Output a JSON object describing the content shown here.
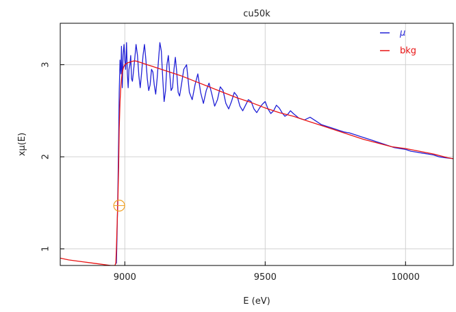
{
  "chart_data": {
    "type": "line",
    "title": "cu50k",
    "xlabel": "E (eV)",
    "ylabel": "xμ(E)",
    "xlim": [
      8770,
      10170
    ],
    "ylim": [
      0.82,
      3.45
    ],
    "xticks": [
      {
        "value": 9000,
        "label": "9000"
      },
      {
        "value": 9500,
        "label": "9500"
      },
      {
        "value": 10000,
        "label": "10000"
      }
    ],
    "yticks": [
      {
        "value": 1,
        "label": "1"
      },
      {
        "value": 2,
        "label": "2"
      },
      {
        "value": 3,
        "label": "3"
      }
    ],
    "grid": true,
    "legend_position": "top-right",
    "marker": {
      "x": 8980,
      "y": 1.47,
      "color": "#f0a020",
      "shape": "circle"
    },
    "series": [
      {
        "name": "μ",
        "color": "#1f1fd6",
        "x": [
          8970,
          8972,
          8975,
          8978,
          8980,
          8983,
          8986,
          8988,
          8991,
          8994,
          8997,
          9000,
          9003,
          9006,
          9009,
          9012,
          9015,
          9018,
          9021,
          9024,
          9027,
          9030,
          9035,
          9040,
          9045,
          9050,
          9055,
          9060,
          9065,
          9070,
          9075,
          9080,
          9085,
          9090,
          9095,
          9100,
          9105,
          9110,
          9115,
          9120,
          9125,
          9130,
          9135,
          9140,
          9145,
          9150,
          9155,
          9160,
          9165,
          9170,
          9175,
          9180,
          9185,
          9190,
          9195,
          9200,
          9210,
          9220,
          9230,
          9240,
          9250,
          9260,
          9270,
          9280,
          9290,
          9300,
          9310,
          9320,
          9330,
          9340,
          9350,
          9360,
          9370,
          9380,
          9390,
          9400,
          9410,
          9420,
          9430,
          9440,
          9450,
          9460,
          9470,
          9480,
          9490,
          9500,
          9510,
          9520,
          9530,
          9540,
          9550,
          9560,
          9570,
          9580,
          9590,
          9600,
          9620,
          9640,
          9660,
          9680,
          9700,
          9720,
          9740,
          9760,
          9780,
          9800,
          9820,
          9840,
          9860,
          9880,
          9900,
          9920,
          9940,
          9960,
          9980,
          10000,
          10020,
          10040,
          10060,
          10080,
          10100,
          10120,
          10140,
          10170
        ],
        "y": [
          0.84,
          1.1,
          1.6,
          2.2,
          2.7,
          3.05,
          2.9,
          3.2,
          2.75,
          3.1,
          3.22,
          3.05,
          2.95,
          3.24,
          2.9,
          2.75,
          2.95,
          3.0,
          3.1,
          2.85,
          2.82,
          2.9,
          3.05,
          3.22,
          3.1,
          2.88,
          2.75,
          2.92,
          3.1,
          3.22,
          3.05,
          2.85,
          2.72,
          2.78,
          2.95,
          2.92,
          2.78,
          2.68,
          2.85,
          3.05,
          3.24,
          3.15,
          2.85,
          2.6,
          2.72,
          3.0,
          3.1,
          2.9,
          2.72,
          2.75,
          2.95,
          3.08,
          2.92,
          2.7,
          2.66,
          2.75,
          2.95,
          3.0,
          2.7,
          2.62,
          2.78,
          2.9,
          2.7,
          2.58,
          2.72,
          2.8,
          2.68,
          2.55,
          2.62,
          2.76,
          2.72,
          2.58,
          2.52,
          2.6,
          2.7,
          2.66,
          2.55,
          2.5,
          2.56,
          2.62,
          2.6,
          2.52,
          2.48,
          2.53,
          2.57,
          2.6,
          2.52,
          2.47,
          2.5,
          2.56,
          2.53,
          2.48,
          2.44,
          2.46,
          2.5,
          2.47,
          2.42,
          2.4,
          2.43,
          2.39,
          2.35,
          2.33,
          2.31,
          2.29,
          2.27,
          2.26,
          2.24,
          2.22,
          2.2,
          2.18,
          2.16,
          2.14,
          2.12,
          2.1,
          2.09,
          2.08,
          2.06,
          2.05,
          2.04,
          2.03,
          2.02,
          2.0,
          1.99,
          1.98
        ]
      },
      {
        "name": "bkg",
        "color": "#e81010",
        "x": [
          8770,
          8800,
          8850,
          8900,
          8950,
          8965,
          8968,
          8970,
          8972,
          8975,
          8978,
          8980,
          8983,
          8986,
          8990,
          8995,
          9000,
          9010,
          9020,
          9030,
          9040,
          9050,
          9060,
          9080,
          9100,
          9150,
          9200,
          9250,
          9300,
          9350,
          9400,
          9450,
          9500,
          9550,
          9600,
          9650,
          9700,
          9750,
          9800,
          9850,
          9900,
          9950,
          10000,
          10050,
          10100,
          10150,
          10170
        ],
        "y": [
          0.9,
          0.88,
          0.86,
          0.84,
          0.82,
          0.82,
          0.85,
          1.0,
          1.2,
          1.5,
          1.9,
          2.3,
          2.6,
          2.78,
          2.9,
          2.97,
          3.0,
          3.02,
          3.03,
          3.04,
          3.04,
          3.03,
          3.02,
          3.0,
          2.98,
          2.93,
          2.88,
          2.82,
          2.76,
          2.7,
          2.64,
          2.59,
          2.53,
          2.48,
          2.44,
          2.39,
          2.34,
          2.29,
          2.24,
          2.19,
          2.15,
          2.11,
          2.09,
          2.06,
          2.03,
          1.99,
          1.98
        ]
      }
    ]
  }
}
